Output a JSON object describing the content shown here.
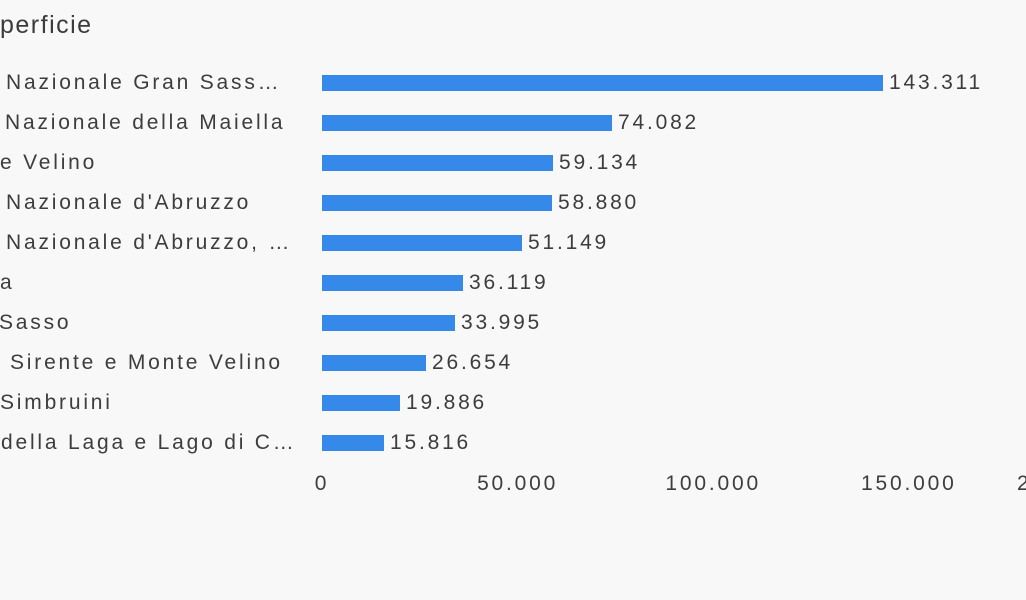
{
  "page": {
    "background": "#f8f8f9",
    "text_color": "#3d3d3d"
  },
  "chart_data": {
    "type": "bar",
    "orientation": "horizontal",
    "title": "perficie",
    "categories": [
      "Nazionale Gran Sass…",
      "Nazionale della Maiella",
      "e Velino",
      "Nazionale d'Abruzzo",
      "Nazionale d'Abruzzo, …",
      "a",
      "Sasso",
      "Sirente e Monte Velino",
      "Simbruini",
      "della Laga e Lago di C…"
    ],
    "values": [
      143311,
      74082,
      59134,
      58880,
      51149,
      36119,
      33995,
      26654,
      19886,
      15816
    ],
    "value_labels": [
      "143.311",
      "74.082",
      "59.134",
      "58.880",
      "51.149",
      "36.119",
      "33.995",
      "26.654",
      "19.886",
      "15.816"
    ],
    "x_axis": {
      "tick_labels": [
        "0",
        "50.000",
        "100.000",
        "150.000"
      ],
      "tick_values": [
        0,
        50000,
        100000,
        150000
      ],
      "partial_right_tick_label": "2"
    },
    "xlim": [
      0,
      200000
    ],
    "bar_color": "#3489e9",
    "grid": false,
    "legend": "none"
  }
}
